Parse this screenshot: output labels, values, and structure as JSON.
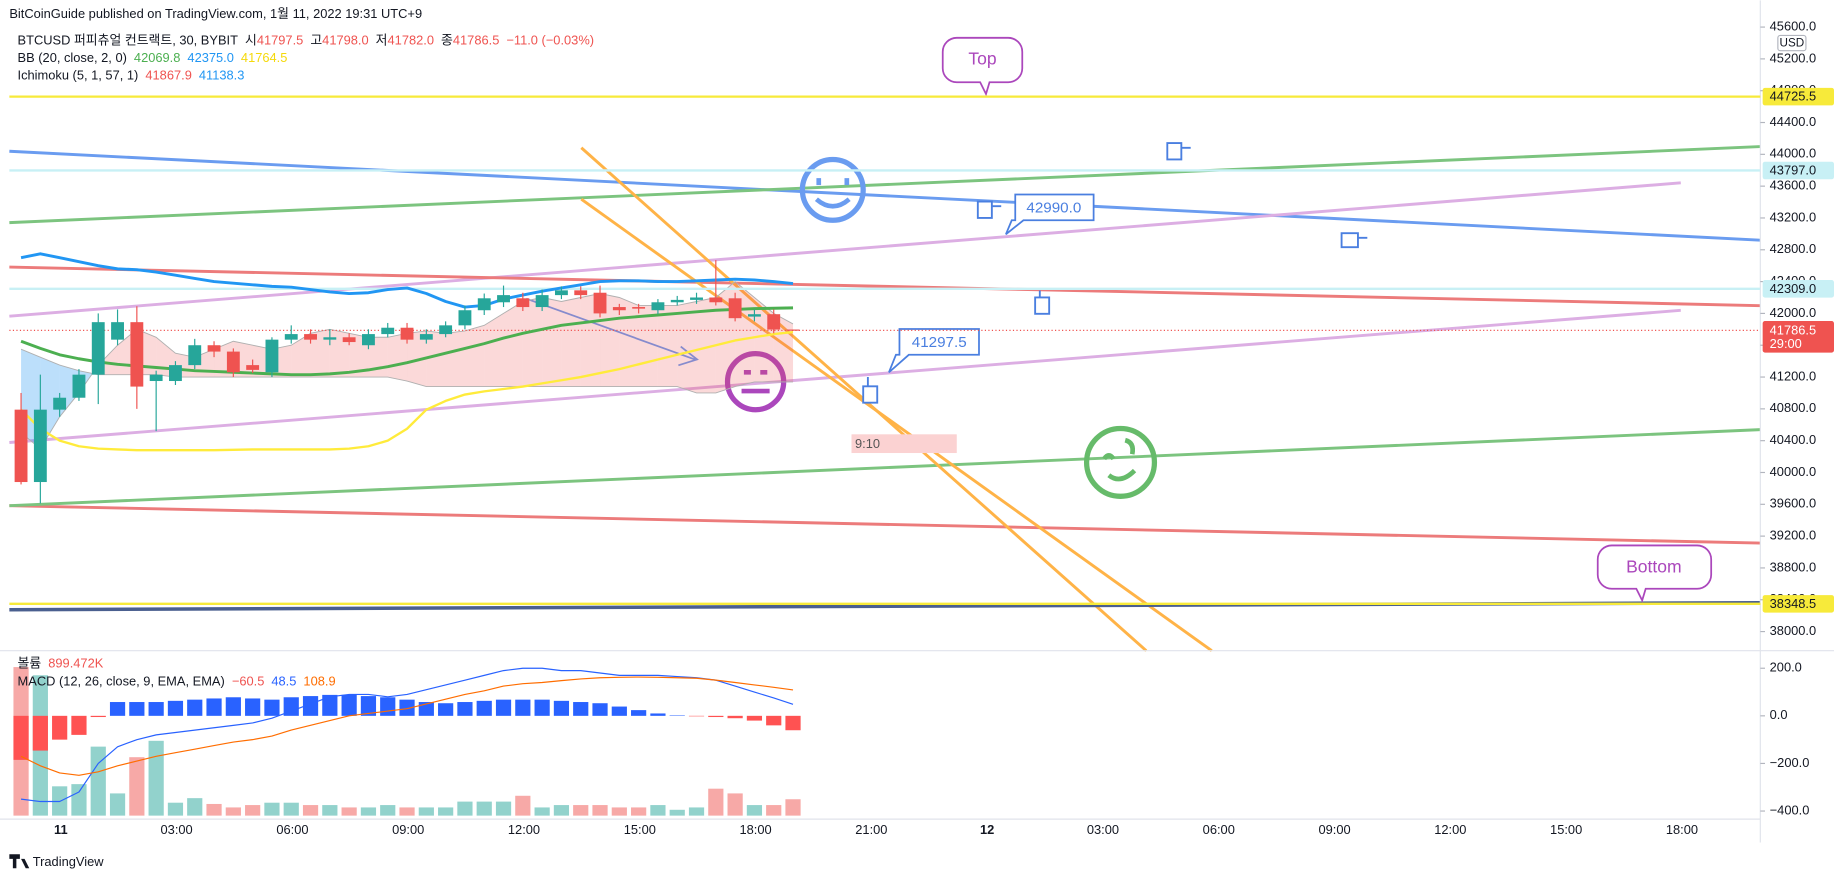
{
  "header": {
    "published": "BitCoinGuide published on TradingView.com, 1월 11, 2022 19:31 UTC+9",
    "footer": "TradingView"
  },
  "chart_data": [
    {
      "type": "candlestick",
      "title": "BTCUSD 퍼피츄얼 컨트랙트, 30, BYBIT",
      "currency": "USD",
      "ohlc_legend": {
        "labels": [
          "시",
          "고",
          "저",
          "종"
        ],
        "values": [
          "41797.5",
          "41798.0",
          "41782.0",
          "41786.5"
        ],
        "change": "−11.0 (−0.03%)"
      },
      "legend": [
        {
          "name": "BB (20, close, 2, 0)",
          "values": [
            "42069.8",
            "42375.0",
            "41764.5"
          ],
          "colors": [
            "#4caf50",
            "#2196f3",
            "#f5d90a"
          ]
        },
        {
          "name": "Ichimoku (5, 1, 57, 1)",
          "values": [
            "41867.9",
            "41138.3"
          ],
          "colors": [
            "#ef5350",
            "#2196f3"
          ]
        }
      ],
      "open": [
        40790,
        39880,
        40790,
        40940,
        41230,
        41670,
        41890,
        41150,
        41150,
        41350,
        41600,
        41520,
        41350,
        41260,
        41670,
        41740,
        41670,
        41700,
        41600,
        41740,
        41820,
        41670,
        41740,
        41850,
        42040,
        42140,
        42190,
        42080,
        42230,
        42290,
        42260,
        42080,
        42080,
        42040,
        42140,
        42170,
        42200,
        42190,
        41960,
        41990,
        41797.5
      ],
      "high": [
        41000,
        41230,
        41000,
        41300,
        42000,
        42050,
        42090,
        41280,
        41400,
        41680,
        41650,
        41560,
        41420,
        41700,
        41850,
        41800,
        41800,
        41750,
        41800,
        41880,
        41880,
        41800,
        41900,
        42100,
        42250,
        42350,
        42260,
        42300,
        42340,
        42340,
        42350,
        42120,
        42120,
        42180,
        42220,
        42260,
        42670,
        42260,
        42050,
        42050,
        41798
      ],
      "low": [
        39850,
        39610,
        40700,
        40900,
        40860,
        41600,
        40800,
        40520,
        41100,
        41300,
        41450,
        41200,
        41250,
        41200,
        41620,
        41620,
        41600,
        41600,
        41550,
        41700,
        41620,
        41620,
        41700,
        41800,
        41980,
        42080,
        42030,
        42030,
        42180,
        42180,
        41950,
        41980,
        42000,
        41990,
        42100,
        42120,
        42100,
        41900,
        41900,
        41750,
        41782
      ],
      "close": [
        39880,
        40790,
        40940,
        41230,
        41890,
        41890,
        41080,
        41230,
        41350,
        41600,
        41520,
        41260,
        41290,
        41670,
        41740,
        41670,
        41700,
        41640,
        41740,
        41820,
        41670,
        41740,
        41850,
        42040,
        42190,
        42230,
        42080,
        42230,
        42290,
        42230,
        42000,
        42040,
        42060,
        42140,
        42170,
        42200,
        42140,
        41940,
        41990,
        41797.5,
        41786.5
      ],
      "up_color": "#26a69a",
      "down_color": "#ef5350",
      "series": [
        {
          "name": "BB upper",
          "color": "#2196f3",
          "values": [
            42700,
            42750,
            42700,
            42650,
            42600,
            42560,
            42550,
            42520,
            42480,
            42440,
            42400,
            42380,
            42360,
            42340,
            42330,
            42300,
            42270,
            42250,
            42260,
            42300,
            42320,
            42250,
            42150,
            42080,
            42100,
            42180,
            42230,
            42280,
            42320,
            42360,
            42400,
            42410,
            42410,
            42400,
            42400,
            42410,
            42420,
            42430,
            42420,
            42400,
            42375
          ]
        },
        {
          "name": "BB basis",
          "color": "#4caf50",
          "values": [
            41650,
            41560,
            41480,
            41430,
            41390,
            41360,
            41340,
            41320,
            41300,
            41280,
            41270,
            41260,
            41250,
            41240,
            41230,
            41230,
            41240,
            41260,
            41290,
            41330,
            41380,
            41440,
            41500,
            41560,
            41620,
            41690,
            41750,
            41800,
            41850,
            41880,
            41910,
            41940,
            41960,
            41980,
            42000,
            42020,
            42040,
            42050,
            42060,
            42065,
            42069.8
          ]
        },
        {
          "name": "BB lower",
          "color": "#ffeb3b",
          "values": [
            40790,
            40550,
            40400,
            40330,
            40300,
            40290,
            40280,
            40280,
            40280,
            40280,
            40280,
            40285,
            40290,
            40290,
            40290,
            40290,
            40290,
            40300,
            40330,
            40400,
            40550,
            40790,
            40900,
            40980,
            41020,
            41050,
            41080,
            41120,
            41160,
            41200,
            41250,
            41300,
            41360,
            41420,
            41480,
            41540,
            41600,
            41660,
            41700,
            41740,
            41764.5
          ]
        }
      ],
      "cloud": {
        "span_a": [
          40500,
          40300,
          40700,
          41000,
          41350,
          41600,
          41800,
          41700,
          41500,
          41450,
          41550,
          41650,
          41600,
          41550,
          41600,
          41750,
          41800,
          41750,
          41700,
          41700,
          41750,
          41780,
          41750,
          41780,
          41850,
          42000,
          42150,
          42200,
          42150,
          42200,
          42250,
          42200,
          42100,
          42100,
          42100,
          42150,
          42200,
          42400,
          42200,
          42000,
          41867.9
        ],
        "span_b": [
          41550,
          41450,
          41350,
          41280,
          41230,
          41230,
          41230,
          41230,
          41200,
          41200,
          41200,
          41200,
          41200,
          41200,
          41200,
          41200,
          41200,
          41200,
          41200,
          41200,
          41150,
          41080,
          41080,
          41080,
          41080,
          41080,
          41080,
          41080,
          41080,
          41080,
          41080,
          41080,
          41080,
          41080,
          41080,
          41000,
          41000,
          41080,
          41138.3,
          41138.3,
          41138.3
        ],
        "bull_color": "rgba(239,83,80,0.22)",
        "bear_color": "rgba(33,150,243,0.30)"
      },
      "ylim": [
        37780,
        45612
      ],
      "yticks": [
        {
          "value": 38000,
          "label": "38000.0"
        },
        {
          "value": 38400,
          "label": "38400.0"
        },
        {
          "value": 38800,
          "label": "38800.0"
        },
        {
          "value": 39200,
          "label": "39200.0"
        },
        {
          "value": 39600,
          "label": "39600.0"
        },
        {
          "value": 40000,
          "label": "40000.0"
        },
        {
          "value": 40400,
          "label": "40400.0"
        },
        {
          "value": 40800,
          "label": "40800.0"
        },
        {
          "value": 41200,
          "label": "41200.0"
        },
        {
          "value": 41600,
          "label": "41600.0"
        },
        {
          "value": 42000,
          "label": "42000.0"
        },
        {
          "value": 42400,
          "label": "42400.0"
        },
        {
          "value": 42800,
          "label": "42800.0"
        },
        {
          "value": 43200,
          "label": "43200.0"
        },
        {
          "value": 43600,
          "label": "43600.0"
        },
        {
          "value": 44000,
          "label": "44000.0"
        },
        {
          "value": 44400,
          "label": "44400.0"
        },
        {
          "value": 44800,
          "label": "44800.0"
        },
        {
          "value": 45200,
          "label": "45200.0"
        },
        {
          "value": 45600,
          "label": "45600.0"
        }
      ],
      "grid": false,
      "price_labels": [
        {
          "value": 44725.5,
          "label": "44725.5",
          "color": "#f7ea3a",
          "text_color": "#131722"
        },
        {
          "value": 43797.0,
          "label": "43797.0",
          "color": "#c8f0f5",
          "text_color": "#131722"
        },
        {
          "value": 42309.0,
          "label": "42309.0",
          "color": "#c8f0f5",
          "text_color": "#131722"
        },
        {
          "value": 38348.5,
          "label": "38348.5",
          "color": "#f7ea3a",
          "text_color": "#131722"
        }
      ],
      "last_price": {
        "value": 41786.5,
        "label": "41786.5",
        "countdown": "29:00",
        "color": "#ef5350"
      },
      "x_labels": [
        "11",
        "03:00",
        "06:00",
        "09:00",
        "12:00",
        "15:00",
        "18:00",
        "21:00",
        "12",
        "03:00",
        "06:00",
        "09:00",
        "12:00",
        "15:00",
        "18:00"
      ],
      "annotations": {
        "top": "Top",
        "bottom": "Bottom",
        "price_a": "42990.0",
        "price_b": "41297.5",
        "time": "9:10"
      }
    },
    {
      "type": "macd",
      "title": "MACD (12, 26, close, 9, EMA, EMA)",
      "legend_values": [
        "−60.5",
        "48.5",
        "108.9"
      ],
      "legend_colors": [
        "#ef5350",
        "#2962ff",
        "#ff6d00"
      ],
      "volume": {
        "name": "볼륨",
        "last_label": "899.472K",
        "values": [
          8160000,
          7710000,
          1610000,
          1730000,
          3790000,
          1220000,
          3210000,
          4110000,
          710000,
          960000,
          640000,
          450000,
          580000,
          710000,
          710000,
          580000,
          580000,
          450000,
          450000,
          580000,
          450000,
          450000,
          450000,
          770000,
          770000,
          770000,
          1090000,
          450000,
          580000,
          580000,
          580000,
          450000,
          450000,
          580000,
          320000,
          450000,
          1480000,
          1220000,
          580000,
          580000,
          899472
        ],
        "up_color": "rgba(38,166,154,0.5)",
        "down_color": "rgba(239,83,80,0.5)"
      },
      "histogram": {
        "values": [
          -185,
          -146,
          -100,
          -80,
          -5,
          58,
          58,
          58,
          63,
          68,
          73,
          78,
          73,
          68,
          78,
          83,
          88,
          88,
          83,
          78,
          68,
          58,
          53,
          58,
          63,
          68,
          68,
          68,
          63,
          58,
          53,
          39,
          24,
          10,
          2,
          -2,
          -5,
          -10,
          -20,
          -40,
          -60.5
        ],
        "pos_color": "#2962ff",
        "neg_color": "#ff5252"
      },
      "series": [
        {
          "name": "MACD",
          "color": "#2962ff",
          "values": [
            -350,
            -360,
            -360,
            -320,
            -200,
            -130,
            -100,
            -80,
            -70,
            -60,
            -50,
            -40,
            -30,
            -10,
            20,
            50,
            80,
            90,
            90,
            80,
            90,
            110,
            130,
            150,
            170,
            190,
            200,
            200,
            190,
            190,
            180,
            170,
            170,
            170,
            165,
            160,
            150,
            125,
            100,
            75,
            48.5
          ]
        },
        {
          "name": "Signal",
          "color": "#ff6d00",
          "values": [
            -170,
            -210,
            -240,
            -250,
            -235,
            -210,
            -190,
            -170,
            -155,
            -140,
            -125,
            -110,
            -100,
            -85,
            -60,
            -40,
            -20,
            0,
            10,
            20,
            30,
            50,
            70,
            90,
            105,
            125,
            135,
            140,
            148,
            155,
            160,
            162,
            163,
            162,
            160,
            158,
            150,
            140,
            130,
            120,
            108.9
          ]
        }
      ],
      "ylim": [
        -434,
        254
      ],
      "yticks": [
        {
          "value": 200,
          "label": "200.0"
        },
        {
          "value": 0,
          "label": "0.0"
        },
        {
          "value": -200,
          "label": "−200.0"
        },
        {
          "value": -400,
          "label": "−400.0"
        }
      ]
    }
  ]
}
